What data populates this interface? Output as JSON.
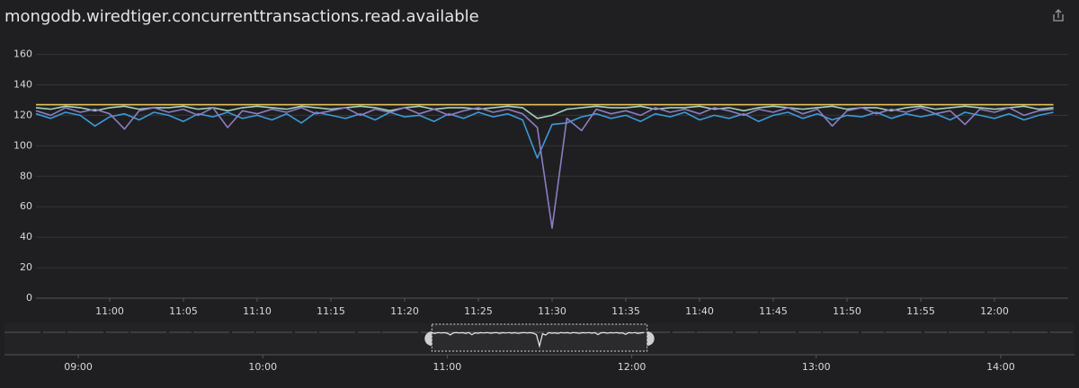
{
  "chart_data": {
    "type": "line",
    "title": "mongodb.wiredtiger.concurrenttransactions.read.available",
    "x": [
      "10:55",
      "10:56",
      "10:57",
      "10:58",
      "10:59",
      "11:00",
      "11:01",
      "11:02",
      "11:03",
      "11:04",
      "11:05",
      "11:06",
      "11:07",
      "11:08",
      "11:09",
      "11:10",
      "11:11",
      "11:12",
      "11:13",
      "11:14",
      "11:15",
      "11:16",
      "11:17",
      "11:18",
      "11:19",
      "11:20",
      "11:21",
      "11:22",
      "11:23",
      "11:24",
      "11:25",
      "11:26",
      "11:27",
      "11:28",
      "11:29",
      "11:30",
      "11:31",
      "11:32",
      "11:33",
      "11:34",
      "11:35",
      "11:36",
      "11:37",
      "11:38",
      "11:39",
      "11:40",
      "11:41",
      "11:42",
      "11:43",
      "11:44",
      "11:45",
      "11:46",
      "11:47",
      "11:48",
      "11:49",
      "11:50",
      "11:51",
      "11:52",
      "11:53",
      "11:54",
      "11:55",
      "11:56",
      "11:57",
      "11:58",
      "11:59",
      "12:00",
      "12:01",
      "12:02",
      "12:03",
      "12:04"
    ],
    "xlim": [
      "10:55",
      "12:05"
    ],
    "xticks": [
      "11:00",
      "11:05",
      "11:10",
      "11:15",
      "11:20",
      "11:25",
      "11:30",
      "11:35",
      "11:40",
      "11:45",
      "11:50",
      "11:55",
      "12:00"
    ],
    "ylim": [
      0,
      168
    ],
    "yticks": [
      0,
      20,
      40,
      60,
      80,
      100,
      120,
      140,
      160
    ],
    "grid": true,
    "series": [
      {
        "color": "#e6c35c",
        "values": [
          127,
          127,
          127,
          127,
          127,
          127,
          127,
          127,
          127,
          127,
          127,
          127,
          127,
          127,
          127,
          127,
          127,
          127,
          127,
          127,
          127,
          127,
          127,
          127,
          127,
          127,
          127,
          127,
          127,
          127,
          127,
          127,
          127,
          127,
          127,
          127,
          127,
          127,
          127,
          127,
          127,
          127,
          127,
          127,
          127,
          127,
          127,
          127,
          127,
          127,
          127,
          127,
          127,
          127,
          127,
          127,
          127,
          127,
          127,
          127,
          127,
          127,
          127,
          127,
          127,
          127,
          127,
          127,
          127,
          127
        ]
      },
      {
        "color": "#9fd3b6",
        "values": [
          125,
          124,
          126,
          125,
          123,
          125,
          126,
          124,
          125,
          125,
          126,
          124,
          125,
          123,
          125,
          126,
          125,
          124,
          126,
          125,
          124,
          125,
          126,
          125,
          123,
          125,
          126,
          124,
          125,
          125,
          124,
          125,
          126,
          125,
          118,
          120,
          124,
          125,
          126,
          125,
          125,
          126,
          124,
          125,
          125,
          126,
          124,
          125,
          123,
          125,
          126,
          125,
          124,
          125,
          126,
          124,
          125,
          125,
          123,
          125,
          126,
          124,
          125,
          126,
          125,
          124,
          125,
          126,
          124,
          125
        ]
      },
      {
        "color": "#3d9ad6",
        "values": [
          121,
          118,
          122,
          120,
          113,
          119,
          121,
          117,
          122,
          120,
          116,
          121,
          119,
          122,
          118,
          120,
          117,
          121,
          115,
          122,
          120,
          118,
          121,
          117,
          122,
          119,
          120,
          116,
          121,
          118,
          122,
          119,
          121,
          117,
          92,
          114,
          115,
          119,
          121,
          118,
          120,
          116,
          121,
          119,
          122,
          117,
          120,
          118,
          121,
          116,
          120,
          122,
          118,
          121,
          117,
          120,
          119,
          122,
          118,
          121,
          119,
          121,
          117,
          122,
          120,
          118,
          121,
          117,
          120,
          122
        ]
      },
      {
        "color": "#8e7cc3",
        "values": [
          123,
          120,
          125,
          122,
          124,
          121,
          111,
          123,
          125,
          122,
          124,
          120,
          125,
          112,
          123,
          121,
          124,
          122,
          125,
          121,
          123,
          125,
          120,
          124,
          122,
          125,
          121,
          124,
          120,
          123,
          125,
          122,
          124,
          121,
          112,
          46,
          118,
          110,
          124,
          121,
          123,
          120,
          125,
          122,
          124,
          121,
          125,
          123,
          120,
          124,
          122,
          125,
          121,
          124,
          113,
          123,
          125,
          121,
          124,
          122,
          125,
          121,
          123,
          114,
          124,
          122,
          125,
          120,
          123,
          124
        ]
      }
    ],
    "navigator": {
      "xlim": [
        "08:36",
        "14:24"
      ],
      "xticks": [
        "09:00",
        "10:00",
        "11:00",
        "12:00",
        "13:00",
        "14:00"
      ]
    }
  }
}
